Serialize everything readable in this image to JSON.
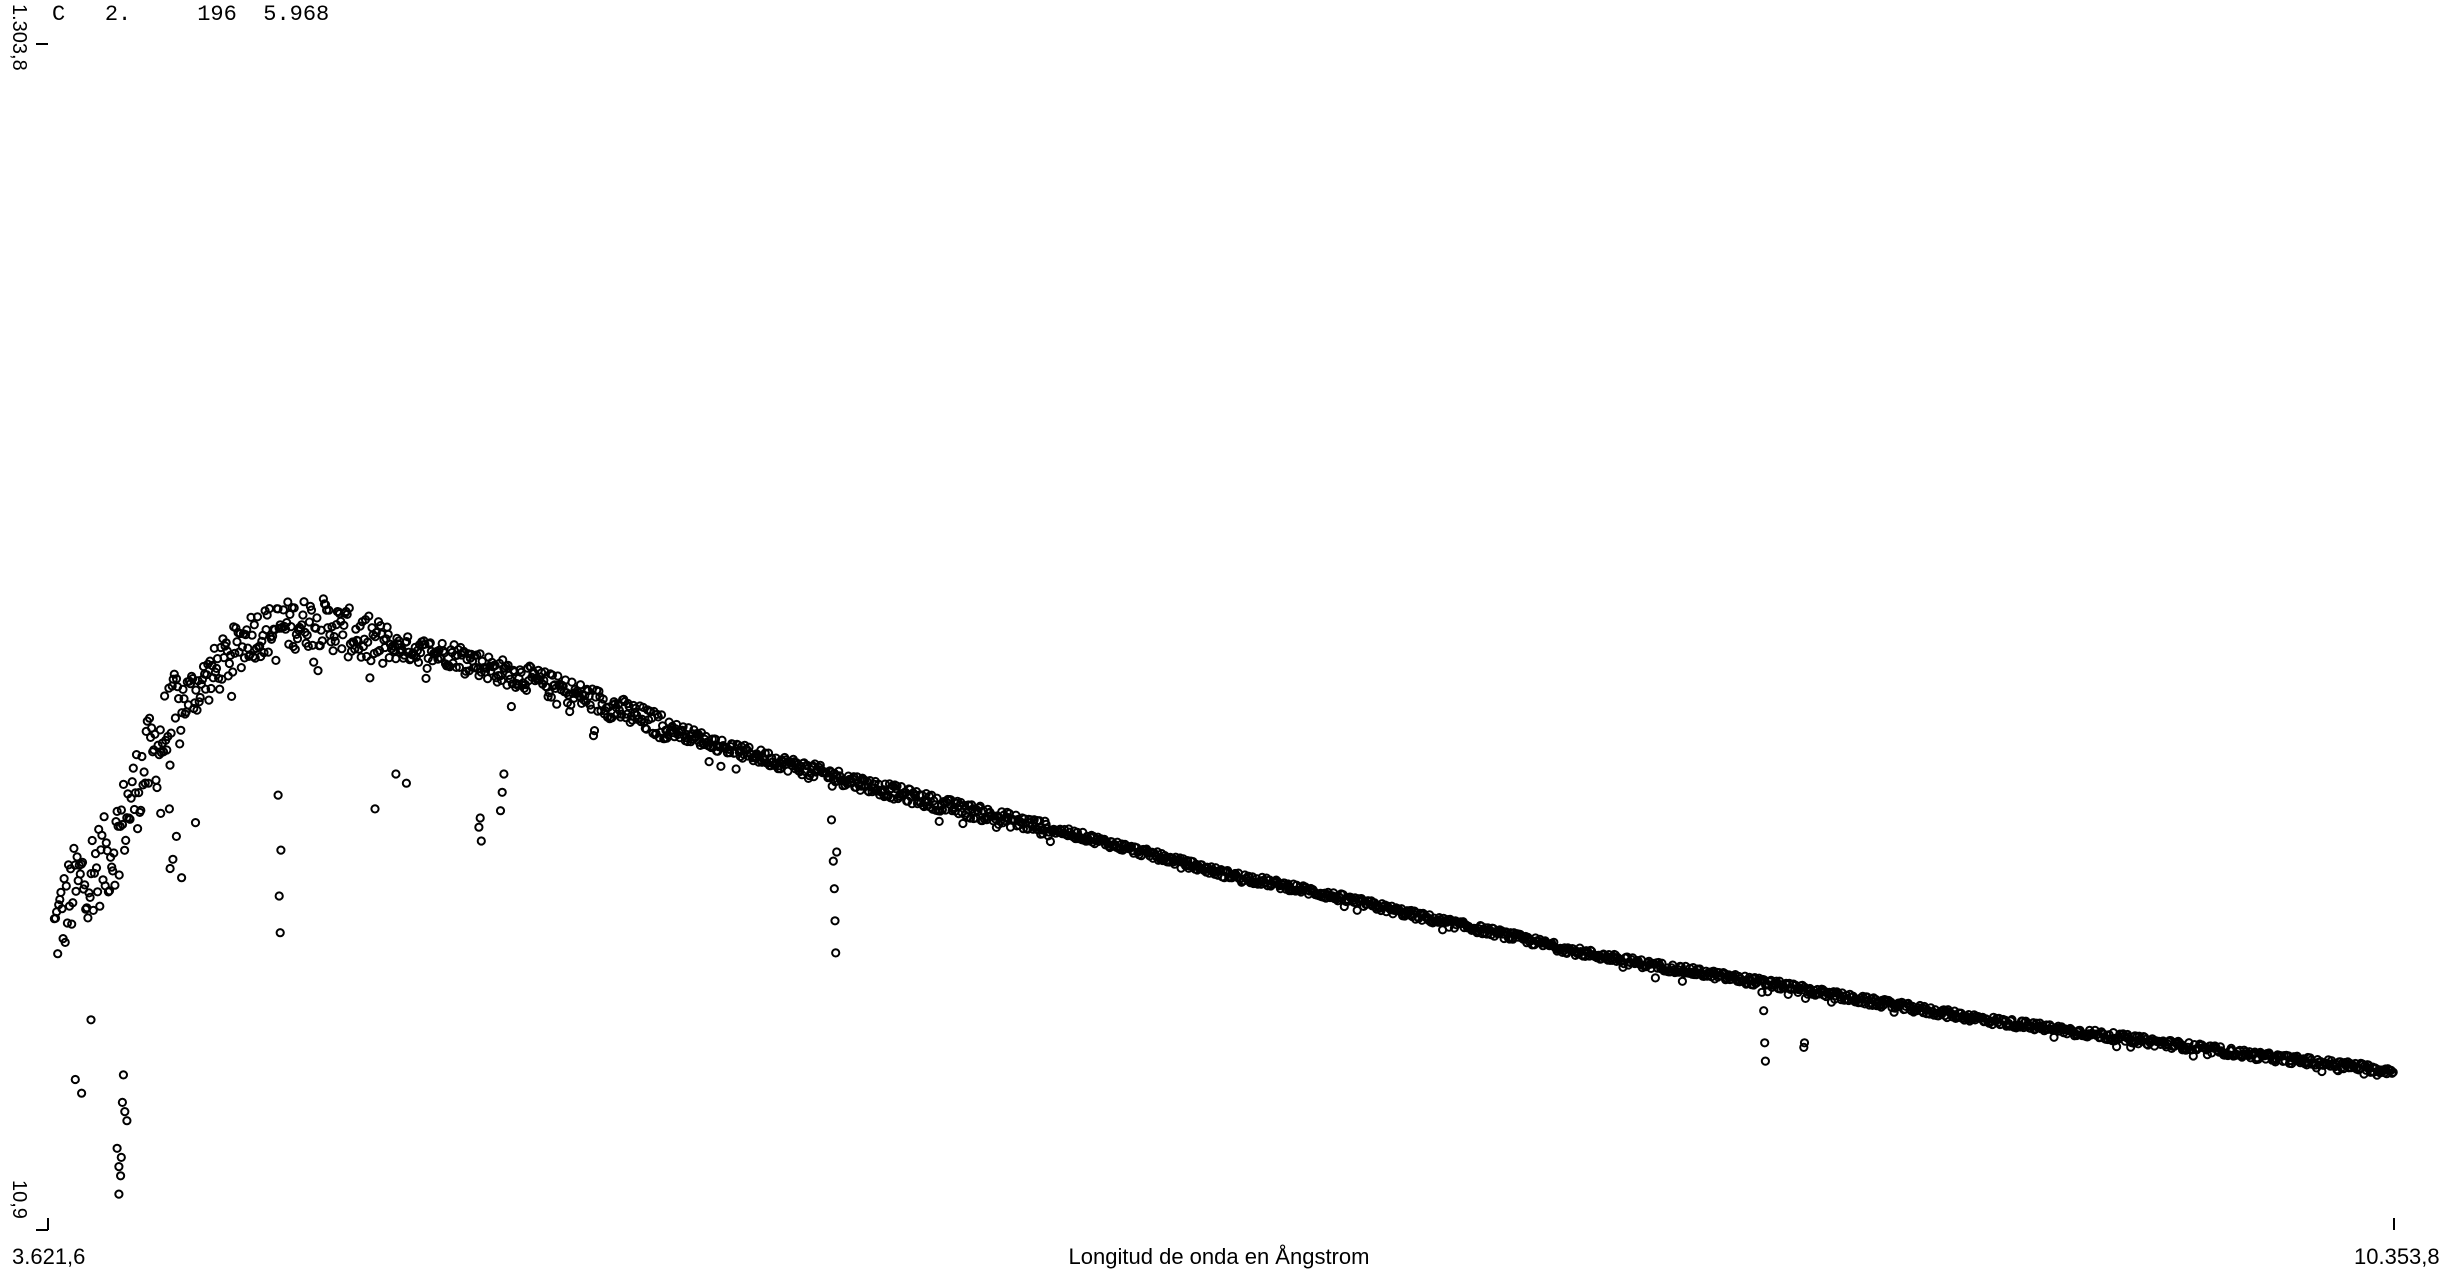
{
  "header": {
    "field1": "C",
    "field2": "2.",
    "field3": "196",
    "field4": "5.968"
  },
  "chart_data": {
    "type": "scatter",
    "title": "",
    "xlabel": "Longitud de onda en Ångstrom",
    "ylabel": "",
    "xlim": [
      3621.6,
      10353.8
    ],
    "ylim": [
      10.9,
      1303.8
    ],
    "x_tick_labels": [
      "3.621,6",
      "10.353,8"
    ],
    "y_tick_labels": [
      "10,9",
      "1.303,8"
    ],
    "marker": "open-circle",
    "marker_color": "#000000",
    "grid": false,
    "legend": "none",
    "continuum": [
      [
        3640,
        345
      ],
      [
        3700,
        395
      ],
      [
        3800,
        430
      ],
      [
        3900,
        525
      ],
      [
        4000,
        590
      ],
      [
        4100,
        625
      ],
      [
        4200,
        665
      ],
      [
        4300,
        675
      ],
      [
        4400,
        680
      ],
      [
        4500,
        665
      ],
      [
        4600,
        650
      ],
      [
        4700,
        645
      ],
      [
        4800,
        640
      ],
      [
        4900,
        625
      ],
      [
        5000,
        615
      ],
      [
        5200,
        590
      ],
      [
        5400,
        560
      ],
      [
        5600,
        535
      ],
      [
        5800,
        515
      ],
      [
        6000,
        495
      ],
      [
        6200,
        475
      ],
      [
        6400,
        458
      ],
      [
        6600,
        440
      ],
      [
        6800,
        420
      ],
      [
        7000,
        400
      ],
      [
        7200,
        385
      ],
      [
        7400,
        368
      ],
      [
        7600,
        350
      ],
      [
        7800,
        334
      ],
      [
        8000,
        316
      ],
      [
        8200,
        302
      ],
      [
        8400,
        290
      ],
      [
        8600,
        278
      ],
      [
        8800,
        264
      ],
      [
        9000,
        252
      ],
      [
        9200,
        240
      ],
      [
        9400,
        230
      ],
      [
        9600,
        220
      ],
      [
        9800,
        210
      ],
      [
        10000,
        200
      ],
      [
        10200,
        192
      ],
      [
        10353.8,
        185
      ]
    ],
    "absorption_points": [
      [
        3820,
        100
      ],
      [
        3825,
        80
      ],
      [
        3825,
        50
      ],
      [
        3830,
        70
      ],
      [
        3832,
        90
      ],
      [
        3835,
        150
      ],
      [
        3838,
        180
      ],
      [
        3842,
        140
      ],
      [
        3848,
        130
      ],
      [
        3700,
        175
      ],
      [
        3718,
        160
      ],
      [
        3745,
        240
      ],
      [
        4282,
        485
      ],
      [
        4290,
        425
      ],
      [
        4288,
        335
      ],
      [
        4285,
        375
      ],
      [
        4920,
        468
      ],
      [
        4925,
        488
      ],
      [
        4930,
        508
      ],
      [
        5875,
        413
      ],
      [
        5878,
        383
      ],
      [
        5880,
        348
      ],
      [
        5882,
        313
      ],
      [
        5885,
        423
      ],
      [
        5870,
        458
      ],
      [
        8540,
        270
      ],
      [
        8545,
        250
      ],
      [
        8548,
        215
      ],
      [
        8550,
        195
      ],
      [
        8662,
        215
      ],
      [
        8660,
        210
      ],
      [
        4865,
        435
      ],
      [
        4858,
        450
      ],
      [
        4862,
        460
      ],
      [
        3972,
        405
      ],
      [
        3980,
        415
      ],
      [
        3970,
        470
      ],
      [
        3945,
        465
      ],
      [
        3990,
        440
      ],
      [
        4005,
        395
      ],
      [
        4045,
        455
      ],
      [
        4560,
        470
      ],
      [
        4620,
        508
      ],
      [
        4650,
        498
      ]
    ]
  }
}
